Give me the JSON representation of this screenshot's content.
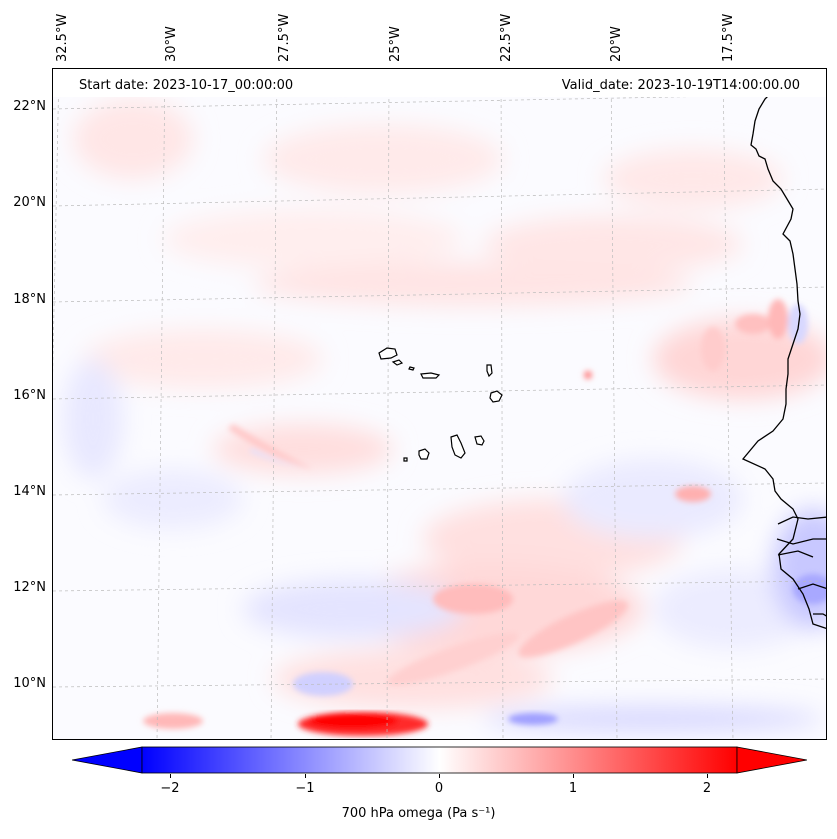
{
  "header": {
    "start_date": "Start date: 2023-10-17_00:00:00",
    "valid_date": "Valid_date: 2023-10-19T14:00:00.00"
  },
  "axes": {
    "lon_labels": [
      "32.5°W",
      "30°W",
      "27.5°W",
      "25°W",
      "22.5°W",
      "20°W",
      "17.5°W"
    ],
    "lat_labels": [
      "22°N",
      "20°N",
      "18°N",
      "16°N",
      "14°N",
      "12°N",
      "10°N"
    ]
  },
  "colorbar": {
    "label": "700 hPa omega (Pa s⁻¹)",
    "ticks": [
      "−2",
      "−1",
      "0",
      "1",
      "2"
    ],
    "range": [
      -2.5,
      2.5
    ],
    "low_color": "#0000ff",
    "mid_color": "#ffffff",
    "high_color": "#ff0000"
  },
  "map": {
    "extent_lon": [
      -32.5,
      -15.5
    ],
    "extent_lat": [
      8.5,
      22.5
    ],
    "field": "700 hPa omega",
    "coastline_color": "#000000"
  }
}
